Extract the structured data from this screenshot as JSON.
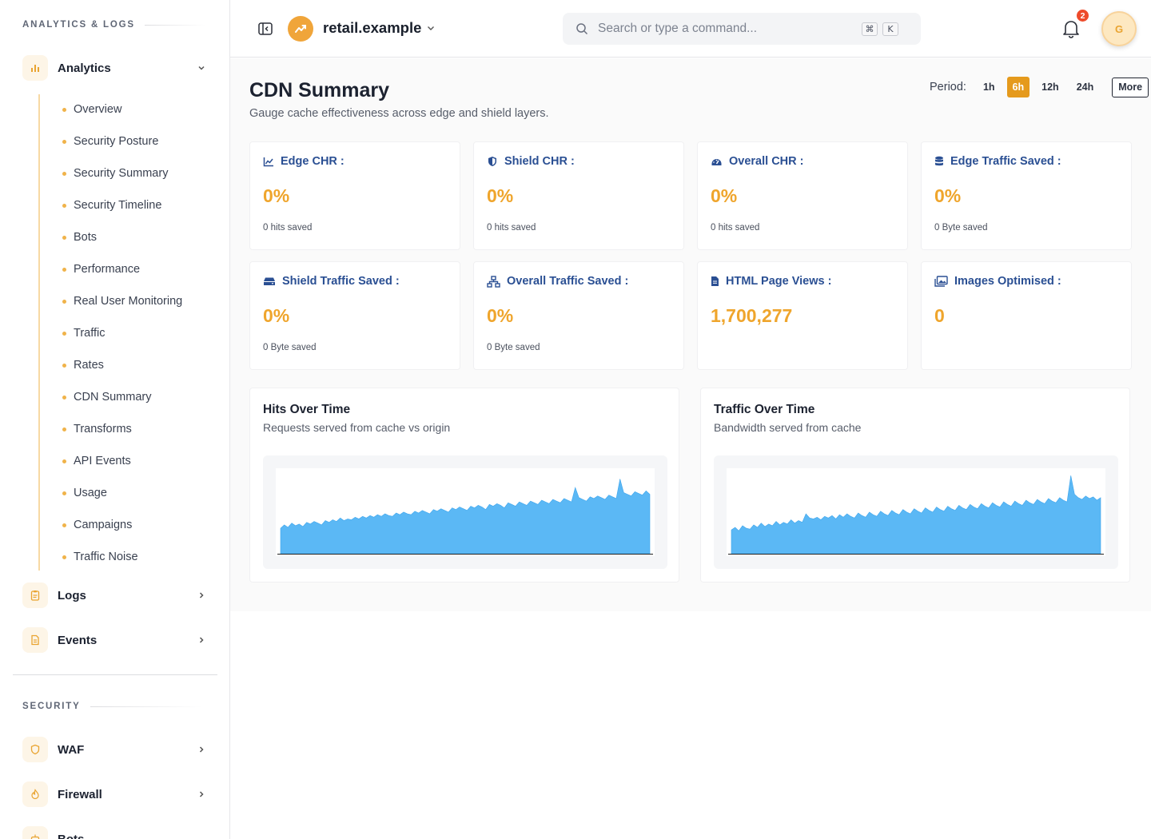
{
  "sidebar": {
    "section_analytics": "ANALYTICS & LOGS",
    "section_security": "SECURITY",
    "analytics_label": "Analytics",
    "analytics_items": [
      "Overview",
      "Security Posture",
      "Security Summary",
      "Security Timeline",
      "Bots",
      "Performance",
      "Real User Monitoring",
      "Traffic",
      "Rates",
      "CDN Summary",
      "Transforms",
      "API Events",
      "Usage",
      "Campaigns",
      "Traffic Noise"
    ],
    "logs_label": "Logs",
    "events_label": "Events",
    "waf_label": "WAF",
    "firewall_label": "Firewall",
    "bots_label": "Bots"
  },
  "header": {
    "site_name": "retail.example",
    "search_placeholder": "Search or type a command...",
    "shortcut_key": "K",
    "notification_count": "2",
    "avatar_initial": "G"
  },
  "page": {
    "title": "CDN Summary",
    "subtitle": "Gauge cache effectiveness across edge and shield layers.",
    "period_label": "Period:",
    "periods": [
      "1h",
      "6h",
      "12h",
      "24h"
    ],
    "active_period": "6h",
    "more_label": "More"
  },
  "stats": [
    {
      "title": "Edge CHR :",
      "value": "0%",
      "sub": "0 hits saved",
      "icon": "area-chart-icon"
    },
    {
      "title": "Shield CHR :",
      "value": "0%",
      "sub": "0 hits saved",
      "icon": "shield-icon"
    },
    {
      "title": "Overall CHR :",
      "value": "0%",
      "sub": "0 hits saved",
      "icon": "gauge-icon"
    },
    {
      "title": "Edge Traffic Saved :",
      "value": "0%",
      "sub": "0 Byte saved",
      "icon": "database-icon"
    },
    {
      "title": "Shield Traffic Saved :",
      "value": "0%",
      "sub": "0 Byte saved",
      "icon": "hard-drive-icon"
    },
    {
      "title": "Overall Traffic Saved :",
      "value": "0%",
      "sub": "0 Byte saved",
      "icon": "network-icon"
    },
    {
      "title": "HTML Page Views :",
      "value": "1,700,277",
      "sub": "",
      "icon": "document-icon"
    },
    {
      "title": "Images Optimised :",
      "value": "0",
      "sub": "",
      "icon": "images-icon"
    }
  ],
  "charts": {
    "hits_title": "Hits Over Time",
    "hits_sub": "Requests served from cache vs origin",
    "traffic_title": "Traffic Over Time",
    "traffic_sub": "Bandwidth served from cache"
  },
  "chart_data": [
    {
      "type": "area",
      "title": "Hits Over Time",
      "subtitle": "Requests served from cache vs origin",
      "series": [
        {
          "values": [
            30,
            34,
            31,
            36,
            33,
            35,
            32,
            37,
            35,
            38,
            36,
            34,
            39,
            37,
            40,
            38,
            42,
            39,
            41,
            40,
            43,
            41,
            44,
            42,
            45,
            43,
            46,
            44,
            47,
            45,
            44,
            48,
            46,
            49,
            47,
            46,
            50,
            48,
            51,
            49,
            47,
            52,
            50,
            53,
            51,
            49,
            54,
            52,
            55,
            53,
            51,
            56,
            54,
            57,
            55,
            52,
            58,
            56,
            59,
            57,
            54,
            60,
            58,
            56,
            61,
            59,
            57,
            62,
            60,
            58,
            63,
            61,
            59,
            64,
            62,
            60,
            65,
            63,
            61,
            78,
            66,
            64,
            62,
            67,
            65,
            68,
            66,
            64,
            69,
            67,
            65,
            88,
            72,
            70,
            68,
            73,
            71,
            69,
            74,
            70
          ]
        }
      ],
      "color": "#5bb8f5"
    },
    {
      "type": "area",
      "title": "Traffic Over Time",
      "subtitle": "Bandwidth served from cache",
      "series": [
        {
          "values": [
            28,
            31,
            27,
            33,
            30,
            29,
            34,
            31,
            36,
            32,
            35,
            33,
            38,
            34,
            37,
            35,
            40,
            36,
            39,
            37,
            47,
            42,
            41,
            43,
            40,
            44,
            42,
            45,
            41,
            46,
            43,
            47,
            44,
            42,
            48,
            45,
            43,
            49,
            46,
            44,
            50,
            47,
            45,
            51,
            48,
            46,
            52,
            49,
            47,
            53,
            50,
            48,
            54,
            51,
            49,
            55,
            52,
            50,
            56,
            53,
            51,
            57,
            54,
            52,
            58,
            55,
            53,
            59,
            56,
            54,
            60,
            57,
            55,
            61,
            58,
            56,
            62,
            59,
            57,
            63,
            60,
            58,
            64,
            61,
            59,
            65,
            62,
            60,
            66,
            63,
            61,
            92,
            70,
            66,
            64,
            68,
            65,
            67,
            63,
            66
          ]
        }
      ],
      "color": "#5bb8f5"
    }
  ]
}
